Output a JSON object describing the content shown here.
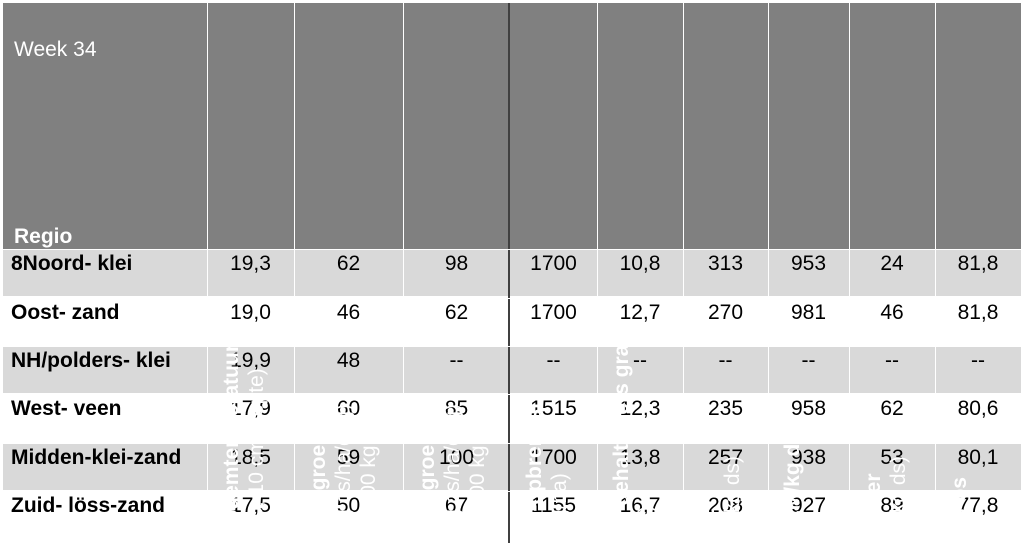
{
  "table": {
    "week_label": "Week 34",
    "region_header": "Regio",
    "columns": [
      {
        "bold": "Bodemtemperatuur",
        "normal": "(°C, 10 cm diepte)"
      },
      {
        "bold": "Grasgroei",
        "normal": "(kg ds/ha/dag)",
        "normal2": "< 1700 kg ds"
      },
      {
        "bold": "Grasgroei",
        "normal": "(kg ds/ha/dag)",
        "normal2": "> 1700 kg ds"
      },
      {
        "bold": "Ds-opbrengst",
        "normal": "(kg/ha)"
      },
      {
        "bold": "Ds gehalte vers gras",
        "normal": "(%)"
      },
      {
        "bold": "RE",
        "normal": "(g/kg ds)"
      },
      {
        "bold": "VEM/kg ds",
        "normal": ""
      },
      {
        "bold": "Suiker",
        "normal": "(g/kg ds)"
      },
      {
        "bold": "VC-os",
        "normal": ""
      }
    ],
    "rows": [
      {
        "region": "8Noord- klei",
        "values": [
          "19,3",
          "62",
          "98",
          "1700",
          "10,8",
          "313",
          "953",
          "24",
          "81,8"
        ]
      },
      {
        "region": "Oost- zand",
        "values": [
          "19,0",
          "46",
          "62",
          "1700",
          "12,7",
          "270",
          "981",
          "46",
          "81,8"
        ]
      },
      {
        "region": "NH/polders- klei",
        "values": [
          "19,9",
          "48",
          "--",
          "--",
          "--",
          "--",
          "--",
          "--",
          "--"
        ]
      },
      {
        "region": "West- veen",
        "values": [
          "17,9",
          "60",
          "85",
          "1515",
          "12,3",
          "235",
          "958",
          "62",
          "80,6"
        ]
      },
      {
        "region": "Midden-klei-zand",
        "values": [
          "18,5",
          "59",
          "100",
          "1700",
          "13,8",
          "257",
          "938",
          "53",
          "80,1"
        ]
      },
      {
        "region": "Zuid- löss-zand",
        "values": [
          "17,5",
          "50",
          "67",
          "1155",
          "16,7",
          "208",
          "927",
          "89",
          "77,8"
        ]
      }
    ]
  },
  "colors": {
    "header_bg": "#808080",
    "row_alt_bg": "#d9d9d9",
    "row_bg": "#ffffff",
    "text_header": "#ffffff",
    "text_body": "#000000"
  }
}
